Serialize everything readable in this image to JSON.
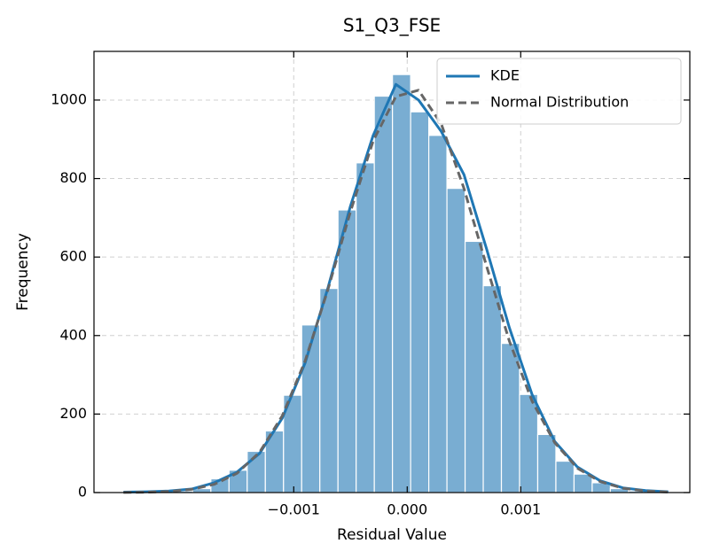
{
  "chart_data": {
    "type": "histogram",
    "title": "S1_Q3_FSE",
    "xlabel": "Residual Value",
    "ylabel": "Frequency",
    "bins": [
      -0.00253,
      -0.00237,
      -0.00221,
      -0.00205,
      -0.00189,
      -0.00173,
      -0.00157,
      -0.00141,
      -0.00125,
      -0.00109,
      -0.00093,
      -0.00077,
      -0.00061,
      -0.00045,
      -0.00029,
      -0.00013,
      3e-05,
      0.00019,
      0.00035,
      0.00051,
      0.00067,
      0.00083,
      0.00099,
      0.00115,
      0.00131,
      0.00147,
      0.00163,
      0.00179,
      0.00195,
      0.00211,
      0.00227
    ],
    "counts": [
      1,
      1,
      2,
      4,
      10,
      35,
      57,
      105,
      157,
      248,
      427,
      520,
      720,
      840,
      1010,
      1065,
      970,
      910,
      775,
      640,
      527,
      380,
      250,
      148,
      80,
      47,
      25,
      10,
      4,
      2
    ],
    "color": "#79add2",
    "series": [
      {
        "name": "KDE",
        "color": "#1f77b4",
        "linestyle": "solid",
        "x": [
          -0.0025,
          -0.0023,
          -0.0021,
          -0.0019,
          -0.0017,
          -0.0015,
          -0.0013,
          -0.0011,
          -0.0009,
          -0.0007,
          -0.0005,
          -0.0003,
          -0.0001,
          0.0001,
          0.0003,
          0.0005,
          0.0007,
          0.0009,
          0.0011,
          0.0013,
          0.0015,
          0.0017,
          0.0019,
          0.0021,
          0.0023
        ],
        "values": [
          1,
          2,
          4,
          9,
          25,
          52,
          100,
          190,
          330,
          520,
          730,
          910,
          1040,
          1000,
          920,
          810,
          620,
          420,
          250,
          130,
          65,
          30,
          12,
          5,
          2
        ]
      },
      {
        "name": "Normal Distribution",
        "color": "#666666",
        "linestyle": "dashed",
        "x": [
          -0.0025,
          -0.0023,
          -0.0021,
          -0.0019,
          -0.0017,
          -0.0015,
          -0.0013,
          -0.0011,
          -0.0009,
          -0.0007,
          -0.0005,
          -0.0003,
          -0.0001,
          0.0001,
          0.0003,
          0.0005,
          0.0007,
          0.0009,
          0.0011,
          0.0013,
          0.0015,
          0.0017,
          0.0019,
          0.0021,
          0.0023
        ],
        "values": [
          0.25,
          0.9,
          2.8,
          8.1,
          21,
          49,
          103,
          196,
          335,
          516,
          716,
          896,
          1009,
          1025,
          939,
          775,
          576,
          386,
          233,
          127,
          62,
          28,
          11,
          3.9,
          1.3
        ]
      }
    ],
    "xlim": [
      -0.00276,
      0.00249
    ],
    "ylim": [
      0,
      1124
    ],
    "xticks": [
      {
        "value": -0.001,
        "label": "−0.001"
      },
      {
        "value": 0,
        "label": "0.000"
      },
      {
        "value": 0.001,
        "label": "0.001"
      }
    ],
    "yticks": [
      0,
      200,
      400,
      600,
      800,
      1000
    ],
    "grid": true,
    "legend": "upper right"
  }
}
